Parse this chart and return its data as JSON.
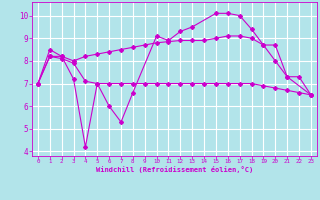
{
  "xlabel": "Windchill (Refroidissement éolien,°C)",
  "background_color": "#b2e4ea",
  "grid_color": "#ffffff",
  "line_color": "#cc00cc",
  "xlim": [
    -0.5,
    23.5
  ],
  "ylim": [
    3.8,
    10.6
  ],
  "yticks": [
    4,
    5,
    6,
    7,
    8,
    9,
    10
  ],
  "xticks": [
    0,
    1,
    2,
    3,
    4,
    5,
    6,
    7,
    8,
    9,
    10,
    11,
    12,
    13,
    14,
    15,
    16,
    17,
    18,
    19,
    20,
    21,
    22,
    23
  ],
  "series": [
    {
      "x": [
        0,
        1,
        2,
        3,
        4,
        5,
        6,
        7,
        8,
        10,
        11,
        12,
        13,
        15,
        16,
        17,
        18,
        19,
        20,
        21,
        23
      ],
      "y": [
        7.0,
        8.5,
        8.2,
        7.2,
        4.2,
        7.0,
        6.0,
        5.3,
        6.6,
        9.1,
        8.9,
        9.3,
        9.5,
        10.1,
        10.1,
        10.0,
        9.4,
        8.7,
        8.0,
        7.3,
        6.5
      ]
    },
    {
      "x": [
        0,
        1,
        2,
        3,
        4,
        5,
        6,
        7,
        8,
        9,
        10,
        11,
        12,
        13,
        14,
        15,
        16,
        17,
        18,
        19,
        20,
        21,
        22,
        23
      ],
      "y": [
        7.0,
        8.2,
        8.1,
        7.9,
        7.1,
        7.0,
        7.0,
        7.0,
        7.0,
        7.0,
        7.0,
        7.0,
        7.0,
        7.0,
        7.0,
        7.0,
        7.0,
        7.0,
        7.0,
        6.9,
        6.8,
        6.7,
        6.6,
        6.5
      ]
    },
    {
      "x": [
        0,
        1,
        2,
        3,
        4,
        5,
        6,
        7,
        8,
        9,
        10,
        11,
        12,
        13,
        14,
        15,
        16,
        17,
        18,
        19,
        20,
        21,
        22,
        23
      ],
      "y": [
        7.0,
        8.2,
        8.2,
        8.0,
        8.2,
        8.3,
        8.4,
        8.5,
        8.6,
        8.7,
        8.8,
        8.85,
        8.9,
        8.9,
        8.9,
        9.0,
        9.1,
        9.1,
        9.0,
        8.7,
        8.7,
        7.3,
        7.3,
        6.5
      ]
    }
  ]
}
